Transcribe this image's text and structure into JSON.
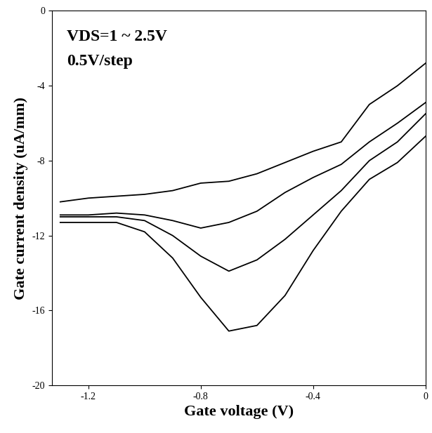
{
  "chart_data": {
    "type": "line",
    "x_label": "Gate voltage (V)",
    "y_label": "Gate current density (uA/mm)",
    "annotations": [
      "VDS=1 ~ 2.5V",
      "0.5V/step"
    ],
    "x": [
      -1.3,
      -1.2,
      -1.1,
      -1.0,
      -0.9,
      -0.8,
      -0.7,
      -0.6,
      -0.5,
      -0.4,
      -0.3,
      -0.2,
      -0.1,
      0
    ],
    "series": [
      {
        "color": "#000000",
        "values": [
          -10.2,
          -10.0,
          -9.9,
          -9.8,
          -9.6,
          -9.2,
          -9.1,
          -8.7,
          -8.1,
          -7.5,
          -7.0,
          -5.0,
          -4.0,
          -2.8
        ]
      },
      {
        "color": "#000000",
        "values": [
          -10.9,
          -10.9,
          -10.8,
          -10.9,
          -11.2,
          -11.6,
          -11.3,
          -10.7,
          -9.7,
          -8.9,
          -8.2,
          -7.0,
          -6.0,
          -4.9
        ]
      },
      {
        "color": "#000000",
        "values": [
          -11.0,
          -11.0,
          -11.0,
          -11.2,
          -12.0,
          -13.1,
          -13.9,
          -13.3,
          -12.2,
          -10.9,
          -9.6,
          -8.0,
          -7.0,
          -5.5
        ]
      },
      {
        "color": "#000000",
        "values": [
          -11.3,
          -11.3,
          -11.3,
          -11.8,
          -13.2,
          -15.3,
          -17.1,
          -16.8,
          -15.2,
          -12.8,
          -10.7,
          -9.0,
          -8.1,
          -6.7
        ]
      }
    ],
    "xlim": [
      -1.33,
      0
    ],
    "xticks": [
      -1.2,
      -0.8,
      -0.4,
      0
    ],
    "ylim": [
      -20,
      0
    ],
    "yticks": [
      -20,
      -16,
      -12,
      -8,
      -4,
      0
    ],
    "grid": false
  }
}
